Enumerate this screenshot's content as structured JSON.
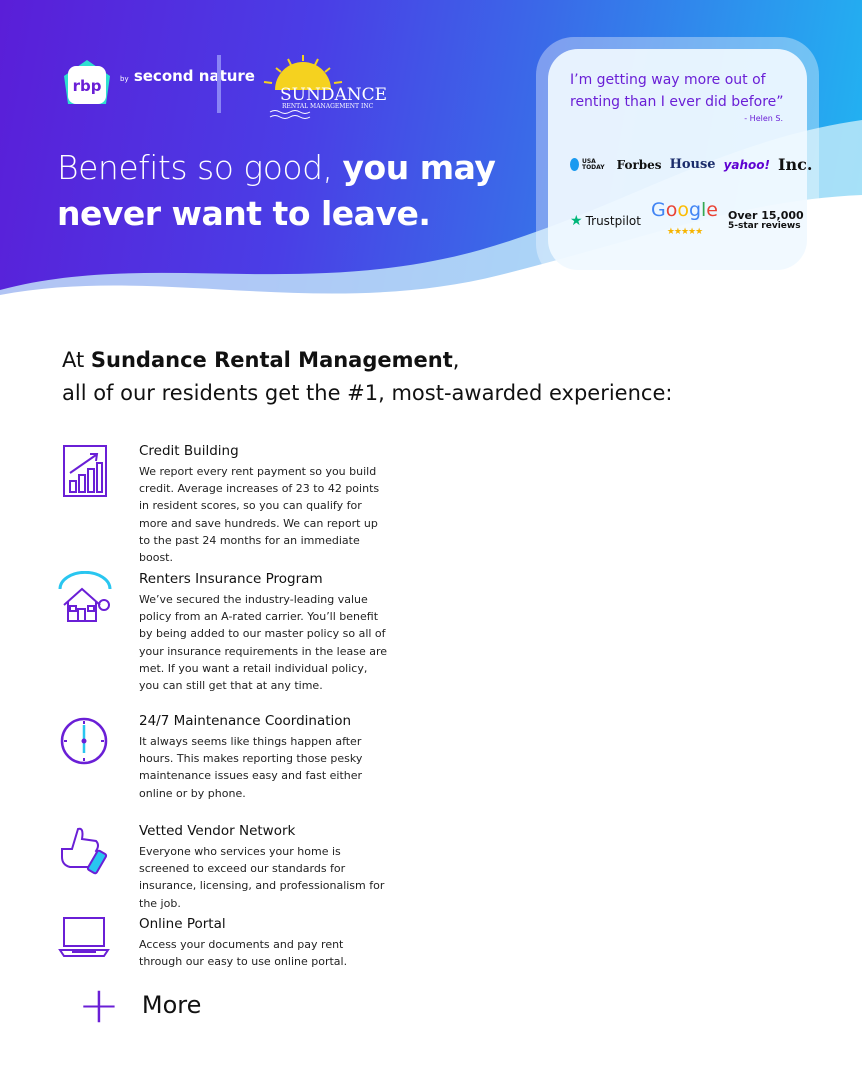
{
  "brand": {
    "rbp": "rbp",
    "by": "by",
    "second_nature": "second nature",
    "partner_name": "SUNDANCE",
    "partner_sub": "RENTAL MANAGEMENT INC"
  },
  "hero": {
    "headline_light": "Benefits so good, ",
    "headline_bold_1": "you may",
    "headline_bold_2": "never want to leave."
  },
  "testimonial": {
    "quote": "I’m getting way more out of renting than I ever did before”",
    "author": "- Helen S.",
    "press": [
      "USA TODAY",
      "Forbes",
      "House",
      "yahoo!",
      "Inc."
    ],
    "trustpilot": "Trustpilot",
    "google": "Google",
    "reviews_line1": "Over 15,000",
    "reviews_line2": "5-star reviews"
  },
  "intro": {
    "prefix": "At ",
    "company": "Sundance Rental Management",
    "suffix": ",",
    "line2": "all of our residents get the #1, most-awarded experience:"
  },
  "benefits": [
    {
      "title": "Credit Building",
      "body": "We report every rent payment so you build credit. Average increases of 23 to 42 points in resident scores, so you can qualify for more and save hundreds. We can report up to the past 24 months for an immediate boost.",
      "icon": "chart-growth-icon"
    },
    {
      "title": "Renters Insurance Program",
      "body": "We’ve secured the industry-leading value policy from an A-rated carrier. You’ll benefit by being added to our master policy so all of your insurance requirements in the lease are met. If you want a retail individual policy, you can still get that at any time.",
      "icon": "house-umbrella-icon"
    },
    {
      "title": "24/7 Maintenance Coordination",
      "body": "It always seems like things happen after hours. This makes reporting those pesky maintenance issues easy and fast either online or by phone.",
      "icon": "clock-icon"
    },
    {
      "title": "Vetted Vendor Network",
      "body": "Everyone who services your home is screened to exceed our standards for insurance, licensing, and professionalism for the job.",
      "icon": "thumbs-up-icon"
    },
    {
      "title": "Online Portal",
      "body": "Access your documents and pay rent through our easy to use online portal.",
      "icon": "laptop-icon"
    }
  ],
  "more": {
    "label": "More"
  },
  "colors": {
    "accent": "#6a1fd6",
    "gradient_start": "#5a1ed8",
    "gradient_end": "#20b8f2"
  }
}
